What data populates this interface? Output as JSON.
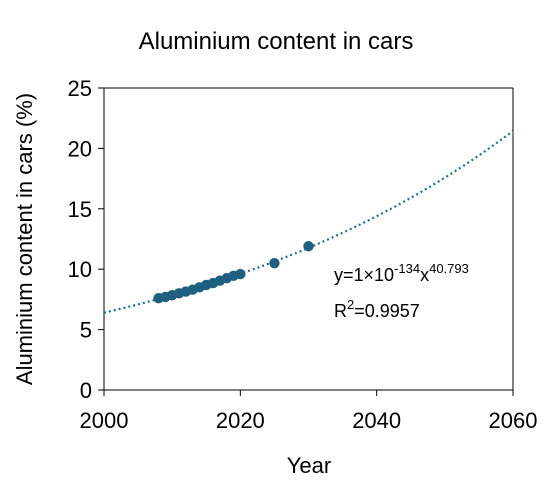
{
  "chart_data": {
    "type": "scatter",
    "title": "Aluminium content in cars",
    "xlabel": "Year",
    "ylabel": "Aluminium content in cars (%)",
    "xlim": [
      2000,
      2060
    ],
    "ylim": [
      0,
      25
    ],
    "x_ticks": [
      "2000",
      "2020",
      "2040",
      "2060"
    ],
    "y_ticks": [
      "0",
      "5",
      "10",
      "15",
      "20",
      "25"
    ],
    "grid": false,
    "legend": "none",
    "colors": {
      "points": "#1f5f7f",
      "trendline": "#1f6f92"
    },
    "series": [
      {
        "x": [
          2008,
          2009,
          2010,
          2011,
          2012,
          2013,
          2014,
          2015,
          2016,
          2017,
          2018,
          2019,
          2020,
          2025,
          2030
        ],
        "y": [
          7.6,
          7.7,
          7.85,
          8.0,
          8.15,
          8.3,
          8.5,
          8.7,
          8.85,
          9.05,
          9.25,
          9.45,
          9.6,
          10.5,
          11.9
        ]
      }
    ],
    "trendline": {
      "type": "power",
      "equation_prefix": "y=1×10",
      "equation_exp1": "-134",
      "equation_mid": "x",
      "equation_exp2": "40.793",
      "r2_prefix": "R",
      "r2_sup": "2",
      "r2_value": "=0.9957"
    }
  }
}
